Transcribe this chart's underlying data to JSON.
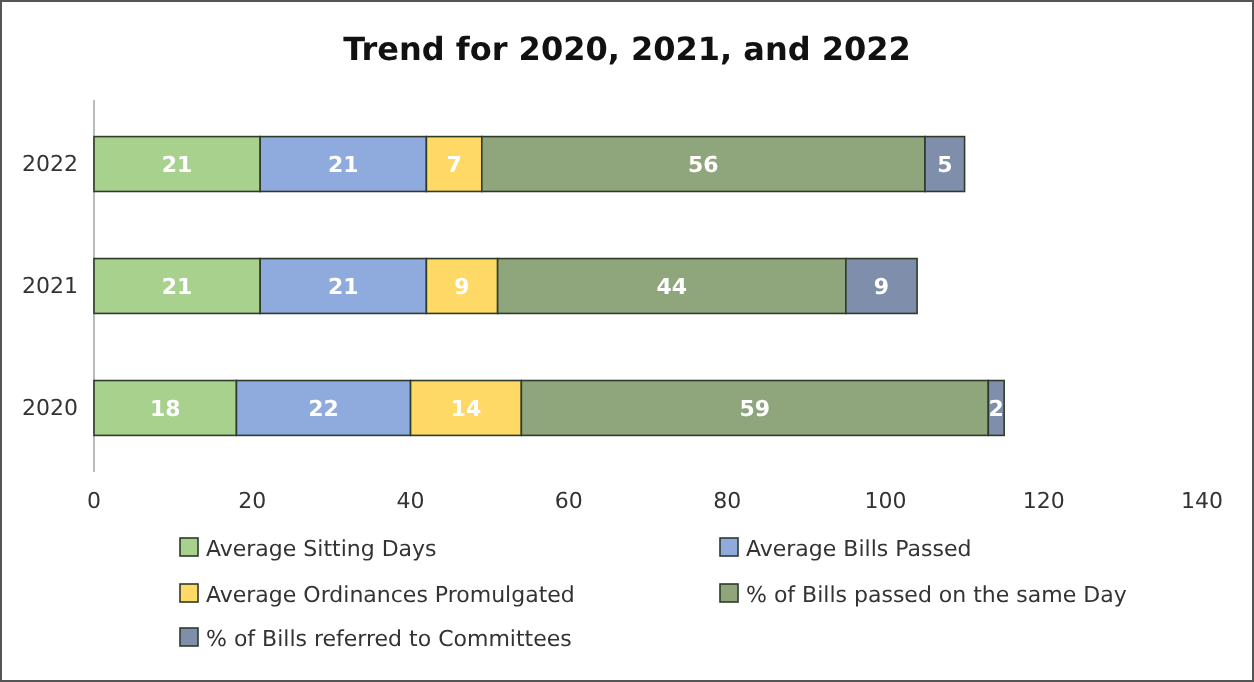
{
  "chart_data": {
    "type": "bar",
    "orientation": "horizontal",
    "stacked": true,
    "title": "Trend for 2020, 2021, and 2022",
    "categories": [
      "2022",
      "2021",
      "2020"
    ],
    "series": [
      {
        "name": "Average Sitting Days",
        "color": "#a9d18e",
        "values": [
          21,
          21,
          18
        ]
      },
      {
        "name": "Average Bills Passed",
        "color": "#8faadc",
        "values": [
          21,
          21,
          22
        ]
      },
      {
        "name": "Average Ordinances Promulgated",
        "color": "#ffd966",
        "values": [
          7,
          9,
          14
        ]
      },
      {
        "name": "% of Bills passed on the same Day",
        "color": "#8fa67c",
        "values": [
          56,
          44,
          59
        ]
      },
      {
        "name": "% of Bills referred to Committees",
        "color": "#7f8fab",
        "values": [
          5,
          9,
          2
        ]
      }
    ],
    "xlim": [
      0,
      140
    ],
    "xticks": [
      0,
      20,
      40,
      60,
      80,
      100,
      120,
      140
    ],
    "grid": false,
    "legend": "bottom",
    "data_labels": true
  }
}
